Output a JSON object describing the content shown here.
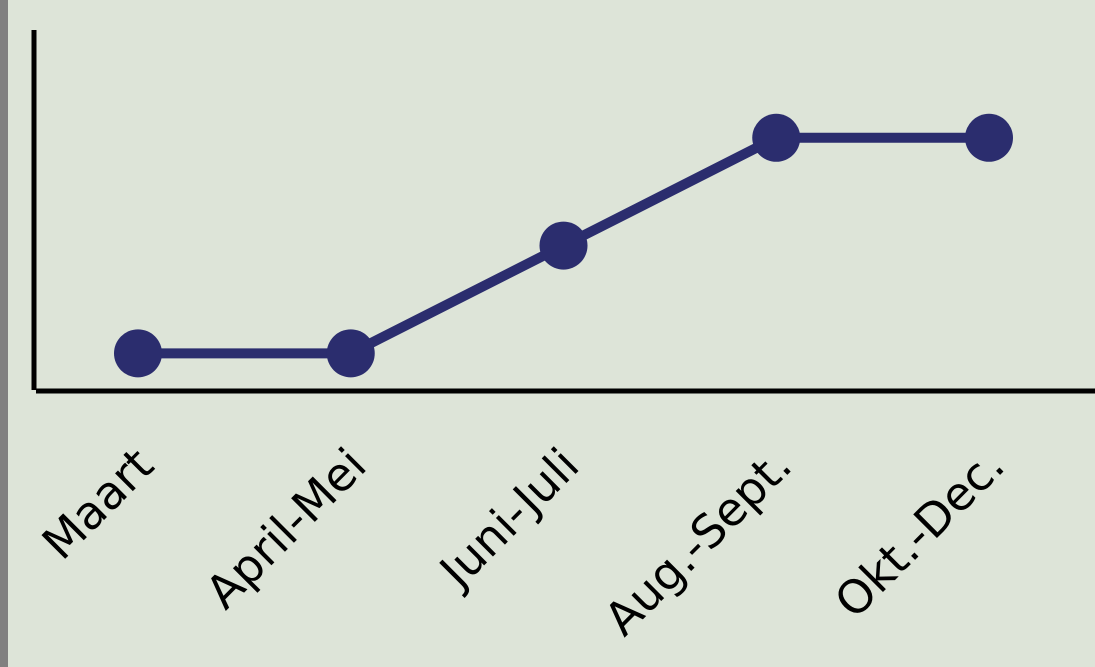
{
  "chart_data": {
    "type": "line",
    "categories": [
      "Maart",
      "April-Mei",
      "Juni-Juli",
      "Aug.-Sept.",
      "Okt.-Dec."
    ],
    "values": [
      1,
      1,
      2,
      3,
      3
    ],
    "color": "#2b2d6e",
    "ylim": [
      0.66,
      4
    ],
    "grid": false
  }
}
